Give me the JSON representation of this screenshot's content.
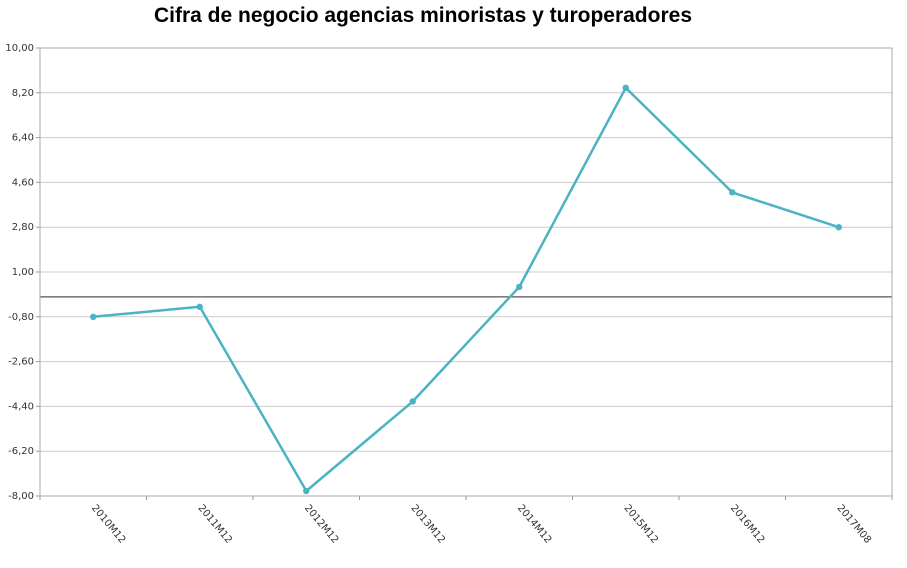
{
  "chart_data": {
    "type": "line",
    "title": "Cifra de negocio agencias minoristas y turoperadores",
    "xlabel": "",
    "ylabel": "",
    "categories": [
      "2010M12",
      "2011M12",
      "2012M12",
      "2013M12",
      "2014M12",
      "2015M12",
      "2016M12",
      "2017M08"
    ],
    "series": [
      {
        "values": [
          -0.8,
          -0.4,
          -7.8,
          -4.2,
          0.4,
          8.4,
          4.2,
          2.8
        ]
      }
    ],
    "ylim": [
      -8,
      10
    ],
    "yticks": [
      "10,00",
      "8,20",
      "6,40",
      "4,60",
      "2,80",
      "1,00",
      "-0,80",
      "-2,60",
      "-4,40",
      "-6,20",
      "-8,00"
    ],
    "reference_line": 0,
    "grid": true,
    "colors": {
      "series": "#4bb3c3",
      "grid": "#cccccc",
      "zero_line": "#555555",
      "frame": "#aaaaaa"
    }
  }
}
